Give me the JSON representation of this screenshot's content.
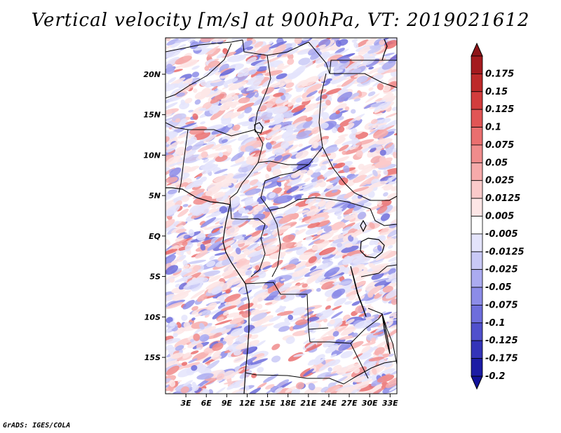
{
  "title": "Vertical velocity [m/s] at 900hPa, VT: 2019021612",
  "footer": "GrADS: IGES/COLA",
  "map": {
    "lat_range": [
      -19.5,
      24.5
    ],
    "lon_range": [
      0,
      34
    ],
    "lat_ticks": [
      {
        "value": 20,
        "label": "20N"
      },
      {
        "value": 15,
        "label": "15N"
      },
      {
        "value": 10,
        "label": "10N"
      },
      {
        "value": 5,
        "label": "5N"
      },
      {
        "value": 0,
        "label": "EQ"
      },
      {
        "value": -5,
        "label": "5S"
      },
      {
        "value": -10,
        "label": "10S"
      },
      {
        "value": -15,
        "label": "15S"
      }
    ],
    "lon_ticks": [
      {
        "value": 3,
        "label": "3E"
      },
      {
        "value": 6,
        "label": "6E"
      },
      {
        "value": 9,
        "label": "9E"
      },
      {
        "value": 12,
        "label": "12E"
      },
      {
        "value": 15,
        "label": "15E"
      },
      {
        "value": 18,
        "label": "18E"
      },
      {
        "value": 21,
        "label": "21E"
      },
      {
        "value": 24,
        "label": "24E"
      },
      {
        "value": 27,
        "label": "27E"
      },
      {
        "value": 30,
        "label": "30E"
      },
      {
        "value": 33,
        "label": "33E"
      }
    ]
  },
  "colorbar": {
    "levels": [
      {
        "label": "0.175",
        "color": "#a41a1e"
      },
      {
        "label": "0.15",
        "color": "#bd2a2a"
      },
      {
        "label": "0.125",
        "color": "#d23c3c"
      },
      {
        "label": "0.1",
        "color": "#e15555"
      },
      {
        "label": "0.075",
        "color": "#ea6f6f"
      },
      {
        "label": "0.05",
        "color": "#f08c8c"
      },
      {
        "label": "0.025",
        "color": "#f6aaaa"
      },
      {
        "label": "0.0125",
        "color": "#fbcaca"
      },
      {
        "label": "0.005",
        "color": "#fde6e6"
      },
      {
        "label": "-0.005",
        "color": "#ffffff"
      },
      {
        "label": "-0.0125",
        "color": "#e4e4fb"
      },
      {
        "label": "-0.025",
        "color": "#c9c9f6"
      },
      {
        "label": "-0.05",
        "color": "#ababf0"
      },
      {
        "label": "-0.075",
        "color": "#8c8ce8"
      },
      {
        "label": "-0.1",
        "color": "#6e6edc"
      },
      {
        "label": "-0.125",
        "color": "#5050cc"
      },
      {
        "label": "-0.175",
        "color": "#3434b8"
      },
      {
        "label": "-0.2",
        "color": "#1c1ca4"
      }
    ],
    "top_color": "#8e1418",
    "bottom_color": "#12129a"
  }
}
